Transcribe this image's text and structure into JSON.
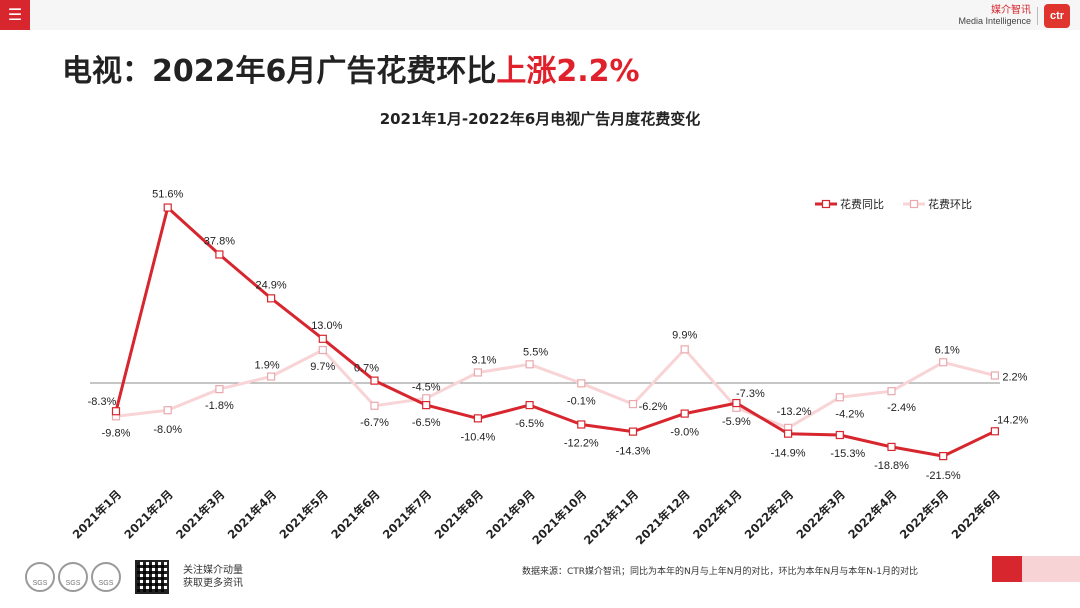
{
  "header": {
    "menu_icon": "menu-icon",
    "brand_cn": "媒介智讯",
    "brand_en": "Media Intelligence",
    "brand_logo": "ctr"
  },
  "headline": {
    "prefix": "电视：2022年6月广告花费环比",
    "highlight": "上涨2.2%"
  },
  "chart_data": {
    "type": "line",
    "title": "2021年1月-2022年6月电视广告月度花费变化",
    "categories": [
      "2021年1月",
      "2021年2月",
      "2021年3月",
      "2021年4月",
      "2021年5月",
      "2021年6月",
      "2021年7月",
      "2021年8月",
      "2021年9月",
      "2021年10月",
      "2021年11月",
      "2021年12月",
      "2022年1月",
      "2022年2月",
      "2022年3月",
      "2022年4月",
      "2022年5月",
      "2022年6月"
    ],
    "series": [
      {
        "name": "花费同比",
        "color": "#d7262e",
        "values": [
          -8.3,
          51.6,
          37.8,
          24.9,
          13.0,
          0.7,
          -6.5,
          -10.4,
          -6.5,
          -12.2,
          -14.3,
          -9.0,
          -5.9,
          -14.9,
          -15.3,
          -18.8,
          -21.5,
          -14.2
        ],
        "labels": [
          "-8.3%",
          "51.6%",
          "37.8%",
          "24.9%",
          "13.0%",
          "0.7%",
          "-6.5%",
          "-10.4%",
          "-6.5%",
          "-12.2%",
          "-14.3%",
          "-9.0%",
          "-5.9%",
          "-14.9%",
          "-15.3%",
          "-18.8%",
          "-21.5%",
          "-14.2%"
        ]
      },
      {
        "name": "花费环比",
        "color": "#f8d4d6",
        "values": [
          -9.8,
          -8.0,
          -1.8,
          1.9,
          9.7,
          -6.7,
          -4.5,
          3.1,
          5.5,
          -0.1,
          -6.2,
          9.9,
          -7.3,
          -13.2,
          -4.2,
          -2.4,
          6.1,
          2.2
        ],
        "labels": [
          "-9.8%",
          "-8.0%",
          "-1.8%",
          "1.9%",
          "9.7%",
          "-6.7%",
          "-4.5%",
          "3.1%",
          "5.5%",
          "-0.1%",
          "-6.2%",
          "9.9%",
          "-7.3%",
          "-13.2%",
          "-4.2%",
          "-2.4%",
          "6.1%",
          "2.2%"
        ]
      }
    ],
    "ylim": [
      -30,
      60
    ],
    "legend": "top-right",
    "grid": false
  },
  "footer": {
    "badges": [
      "SGS",
      "SGS",
      "SGS"
    ],
    "follow_line1": "关注媒介动量",
    "follow_line2": "获取更多资讯",
    "source": "数据来源：CTR媒介智讯；同比为本年的N月与上年N月的对比，环比为本年N月与本年N-1月的对比"
  }
}
